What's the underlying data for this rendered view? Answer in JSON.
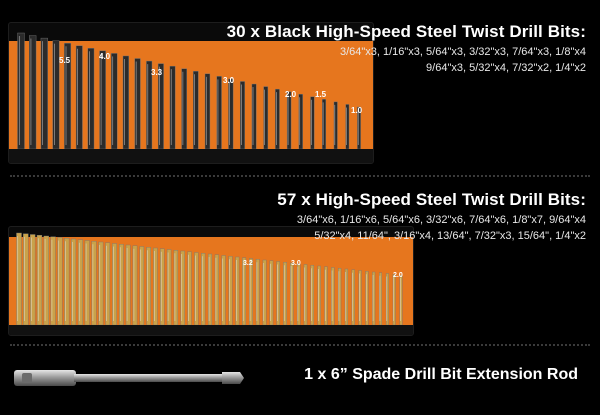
{
  "section_black": {
    "title": "30 x Black High-Speed Steel Twist Drill Bits:",
    "sizes_line1": "3/64\"x3, 1/16\"x3, 5/64\"x3, 3/32\"x3, 7/64\"x3, 1/8\"x4",
    "sizes_line2": "9/64\"x3, 5/32\"x4, 7/32\"x2, 1/4\"x2",
    "tray_labels": [
      "5.5",
      "4.0",
      "3.3",
      "3.0",
      "2.0",
      "1.5",
      "1.0"
    ],
    "bit_count": 30,
    "bit_color": "#2b2b2b",
    "accent": "#e6761e"
  },
  "section_gold": {
    "title": "57 x High-Speed Steel Twist Drill Bits:",
    "sizes_line1": "3/64\"x6, 1/16\"x6, 5/64\"x6, 3/32\"x6, 7/64\"x6, 1/8\"x7, 9/64\"x4",
    "sizes_line2": "5/32\"x4, 11/64\", 3/16\"x4, 13/64\", 7/32\"x3, 15/64\", 1/4\"x2",
    "tray_labels": [
      "3.2",
      "3.0",
      "2.0"
    ],
    "bit_count": 57,
    "bit_color": "#c9a24a",
    "accent": "#e6761e"
  },
  "section_rod": {
    "caption": "1 x 6” Spade Drill Bit Extension Rod"
  }
}
